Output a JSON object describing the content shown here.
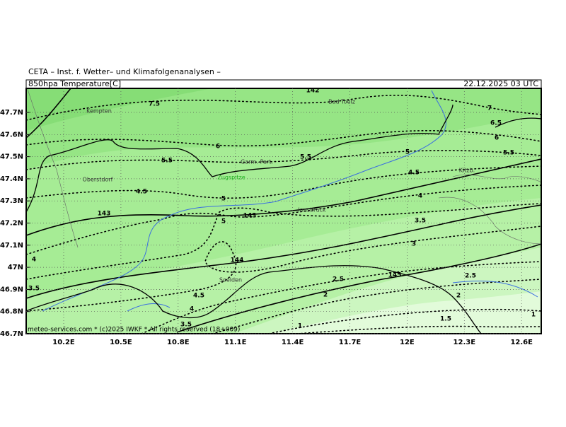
{
  "header": {
    "institute": "CETA – Inst. f. Wetter– und Klimafolgenanalysen –",
    "field": "850hpa Temperature[C]",
    "valid": "22.12.2025 03 UTC"
  },
  "axes": {
    "lat_labels": [
      "47.7N",
      "47.6N",
      "47.5N",
      "47.4N",
      "47.3N",
      "47.2N",
      "47.1N",
      "47N",
      "46.9N",
      "46.8N",
      "46.7N"
    ],
    "lon_labels": [
      "10.2E",
      "10.5E",
      "10.8E",
      "11.1E",
      "11.4E",
      "11.7E",
      "12E",
      "12.3E",
      "12.6E"
    ]
  },
  "places": [
    "Kempten",
    "Bad Toelz",
    "Garm.-Part.",
    "Zugspitze",
    "Oberstdorf",
    "Innsbruck",
    "Kitzb.",
    "Soelden"
  ],
  "contour_labels": [
    "7.5",
    "6",
    "5.5",
    "4.5",
    "5",
    "5",
    "143",
    "143",
    "144",
    "4",
    "3.5",
    "4.5",
    "4",
    "3.5",
    "5.5",
    "5",
    "4.5",
    "4",
    "3.5",
    "3",
    "2.5",
    "145",
    "2",
    "2",
    "2.5",
    "1.5",
    "1",
    "1",
    "7",
    "6.5",
    "6",
    "5.5",
    "142"
  ],
  "footer": "meteo-services.com * (c)2025 IWKF * All rights reserved (18+009)"
}
